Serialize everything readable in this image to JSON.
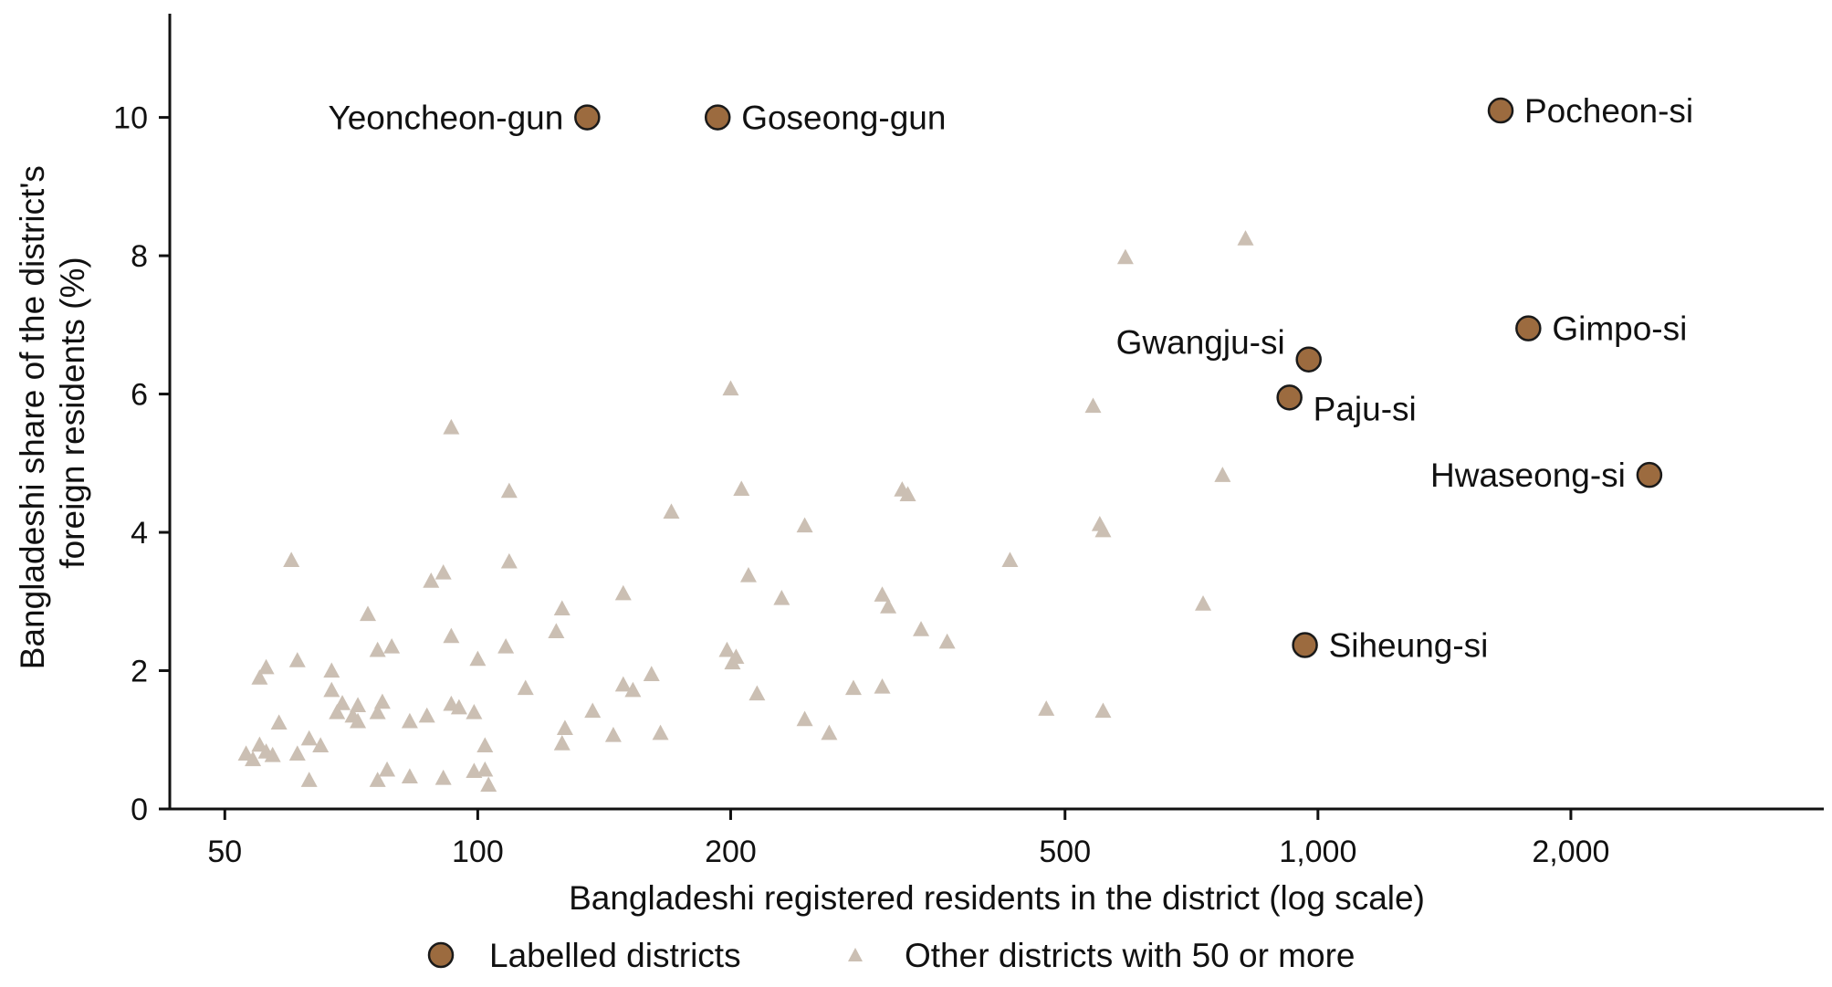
{
  "chart_data": {
    "type": "scatter",
    "title": "",
    "xlabel": "Bangladeshi registered residents in the district (log scale)",
    "ylabel_lines": [
      "Bangladeshi share of the district's",
      "foreign residents (%)"
    ],
    "xscale": "log",
    "xlim": [
      43,
      4000
    ],
    "ylim": [
      0,
      11.5
    ],
    "xticks": [
      50,
      100,
      200,
      500,
      1000,
      2000
    ],
    "xtick_labels": [
      "50",
      "100",
      "200",
      "500",
      "1,000",
      "2,000"
    ],
    "yticks": [
      0,
      2,
      4,
      6,
      8,
      10
    ],
    "ytick_labels": [
      "0",
      "2",
      "4",
      "6",
      "8",
      "10"
    ],
    "grid": false,
    "legend_position": "bottom-center",
    "colors": {
      "labelled": "#9c6b3f",
      "labelled_edge": "#1a1a1a",
      "other": "#cbbfb3",
      "axis": "#111111"
    },
    "series": [
      {
        "name": "Labelled districts",
        "marker": "circle",
        "points": [
          {
            "label": "Yeoncheon-gun",
            "x": 135,
            "y": 10.0,
            "label_side": "left"
          },
          {
            "label": "Goseong-gun",
            "x": 193,
            "y": 10.0,
            "label_side": "right"
          },
          {
            "label": "Pocheon-si",
            "x": 1650,
            "y": 10.1,
            "label_side": "right"
          },
          {
            "label": "Gimpo-si",
            "x": 1780,
            "y": 6.95,
            "label_side": "right"
          },
          {
            "label": "Gwangju-si",
            "x": 975,
            "y": 6.5,
            "label_side": "left-above"
          },
          {
            "label": "Paju-si",
            "x": 925,
            "y": 5.95,
            "label_side": "right-below"
          },
          {
            "label": "Hwaseong-si",
            "x": 2480,
            "y": 4.83,
            "label_side": "left"
          },
          {
            "label": "Siheung-si",
            "x": 965,
            "y": 2.37,
            "label_side": "right"
          }
        ]
      },
      {
        "name": "Other districts with 50 or more",
        "marker": "triangle",
        "points": [
          {
            "x": 53,
            "y": 0.8
          },
          {
            "x": 54,
            "y": 0.72
          },
          {
            "x": 55,
            "y": 0.93
          },
          {
            "x": 55,
            "y": 1.9
          },
          {
            "x": 56,
            "y": 2.05
          },
          {
            "x": 56,
            "y": 0.83
          },
          {
            "x": 57,
            "y": 0.78
          },
          {
            "x": 58,
            "y": 1.25
          },
          {
            "x": 60,
            "y": 3.6
          },
          {
            "x": 61,
            "y": 0.8
          },
          {
            "x": 61,
            "y": 2.15
          },
          {
            "x": 63,
            "y": 1.02
          },
          {
            "x": 63,
            "y": 0.42
          },
          {
            "x": 65,
            "y": 0.92
          },
          {
            "x": 67,
            "y": 2.0
          },
          {
            "x": 67,
            "y": 1.72
          },
          {
            "x": 68,
            "y": 1.4
          },
          {
            "x": 69,
            "y": 1.53
          },
          {
            "x": 71,
            "y": 1.35
          },
          {
            "x": 72,
            "y": 1.5
          },
          {
            "x": 72,
            "y": 1.27
          },
          {
            "x": 74,
            "y": 2.82
          },
          {
            "x": 76,
            "y": 2.3
          },
          {
            "x": 76,
            "y": 1.4
          },
          {
            "x": 76,
            "y": 0.42
          },
          {
            "x": 77,
            "y": 1.55
          },
          {
            "x": 78,
            "y": 0.57
          },
          {
            "x": 79,
            "y": 2.35
          },
          {
            "x": 83,
            "y": 1.27
          },
          {
            "x": 83,
            "y": 0.47
          },
          {
            "x": 87,
            "y": 1.35
          },
          {
            "x": 88,
            "y": 3.3
          },
          {
            "x": 91,
            "y": 3.42
          },
          {
            "x": 91,
            "y": 0.45
          },
          {
            "x": 93,
            "y": 5.52
          },
          {
            "x": 93,
            "y": 2.5
          },
          {
            "x": 93,
            "y": 1.52
          },
          {
            "x": 95,
            "y": 1.47
          },
          {
            "x": 99,
            "y": 1.4
          },
          {
            "x": 99,
            "y": 0.55
          },
          {
            "x": 100,
            "y": 2.17
          },
          {
            "x": 102,
            "y": 0.92
          },
          {
            "x": 102,
            "y": 0.57
          },
          {
            "x": 103,
            "y": 0.35
          },
          {
            "x": 108,
            "y": 2.35
          },
          {
            "x": 109,
            "y": 4.6
          },
          {
            "x": 109,
            "y": 3.58
          },
          {
            "x": 114,
            "y": 1.75
          },
          {
            "x": 124,
            "y": 2.57
          },
          {
            "x": 126,
            "y": 2.9
          },
          {
            "x": 126,
            "y": 0.95
          },
          {
            "x": 127,
            "y": 1.17
          },
          {
            "x": 137,
            "y": 1.42
          },
          {
            "x": 145,
            "y": 1.07
          },
          {
            "x": 149,
            "y": 3.12
          },
          {
            "x": 149,
            "y": 1.8
          },
          {
            "x": 153,
            "y": 1.72
          },
          {
            "x": 161,
            "y": 1.95
          },
          {
            "x": 165,
            "y": 1.1
          },
          {
            "x": 170,
            "y": 4.3
          },
          {
            "x": 198,
            "y": 2.3
          },
          {
            "x": 200,
            "y": 6.08
          },
          {
            "x": 201,
            "y": 2.12
          },
          {
            "x": 203,
            "y": 2.2
          },
          {
            "x": 206,
            "y": 4.63
          },
          {
            "x": 210,
            "y": 3.38
          },
          {
            "x": 215,
            "y": 1.67
          },
          {
            "x": 230,
            "y": 3.05
          },
          {
            "x": 245,
            "y": 4.1
          },
          {
            "x": 245,
            "y": 1.3
          },
          {
            "x": 262,
            "y": 1.1
          },
          {
            "x": 280,
            "y": 1.75
          },
          {
            "x": 303,
            "y": 3.1
          },
          {
            "x": 303,
            "y": 1.77
          },
          {
            "x": 308,
            "y": 2.93
          },
          {
            "x": 320,
            "y": 4.62
          },
          {
            "x": 325,
            "y": 4.55
          },
          {
            "x": 337,
            "y": 2.6
          },
          {
            "x": 362,
            "y": 2.42
          },
          {
            "x": 430,
            "y": 3.6
          },
          {
            "x": 475,
            "y": 1.45
          },
          {
            "x": 540,
            "y": 5.83
          },
          {
            "x": 550,
            "y": 4.12
          },
          {
            "x": 555,
            "y": 4.03
          },
          {
            "x": 555,
            "y": 1.42
          },
          {
            "x": 590,
            "y": 7.98
          },
          {
            "x": 730,
            "y": 2.97
          },
          {
            "x": 770,
            "y": 4.83
          },
          {
            "x": 820,
            "y": 8.25
          }
        ]
      }
    ]
  }
}
